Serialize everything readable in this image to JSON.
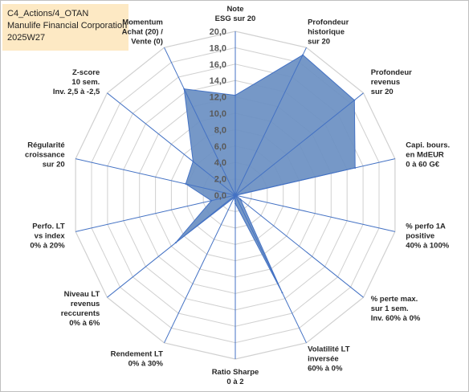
{
  "header": {
    "line1": "C4_Actions/4_OTAN",
    "line2": "Manulife Financial Corporation",
    "line3": "2025W27"
  },
  "chart_data": {
    "type": "radar",
    "rmin": 0,
    "rmax": 20,
    "ticks": [
      "0,0",
      "2,0",
      "4,0",
      "6,0",
      "8,0",
      "10,0",
      "12,0",
      "14,0",
      "16,0",
      "18,0",
      "20,0"
    ],
    "axes": [
      [
        "Note",
        "ESG sur 20"
      ],
      [
        "Profondeur",
        "historique",
        "sur 20"
      ],
      [
        "Profondeur",
        "revenus",
        "sur 20"
      ],
      [
        "Capi. bours.",
        "en MdEUR",
        "0 à 60 G€"
      ],
      [
        "% perfo 1A",
        "positive",
        "40% à 100%"
      ],
      [
        "% perte max.",
        "sur 1 sem.",
        "Inv. 60% à 0%"
      ],
      [
        "Volatilité LT",
        "inversée",
        "60% à 0%"
      ],
      [
        "Ratio Sharpe",
        "0 à 2"
      ],
      [
        "Rendement LT",
        "0% à 30%"
      ],
      [
        "Niveau LT",
        "revenus",
        "reccurents",
        "0% à 6%"
      ],
      [
        "Perfo. LT",
        "vs index",
        "0% à 20%"
      ],
      [
        "Régularité",
        "croissance",
        "sur 20"
      ],
      [
        "Z-score",
        "10 sem.",
        "Inv. 2,5 à -2,5"
      ],
      [
        "Momentum",
        "Achat (20) /",
        "Vente (0)"
      ]
    ],
    "series": [
      {
        "values": [
          12.2,
          19.0,
          18.6,
          15.0,
          0.1,
          0.8,
          13.2,
          1.0,
          0.3,
          9.3,
          3.0,
          6.2,
          6.6,
          14.4
        ]
      }
    ],
    "grid": true,
    "colors": {
      "fill": "#6a8fc2",
      "stroke": "#4472c4",
      "spoke": "#4472c4",
      "grid": "#d0d0d0"
    }
  }
}
